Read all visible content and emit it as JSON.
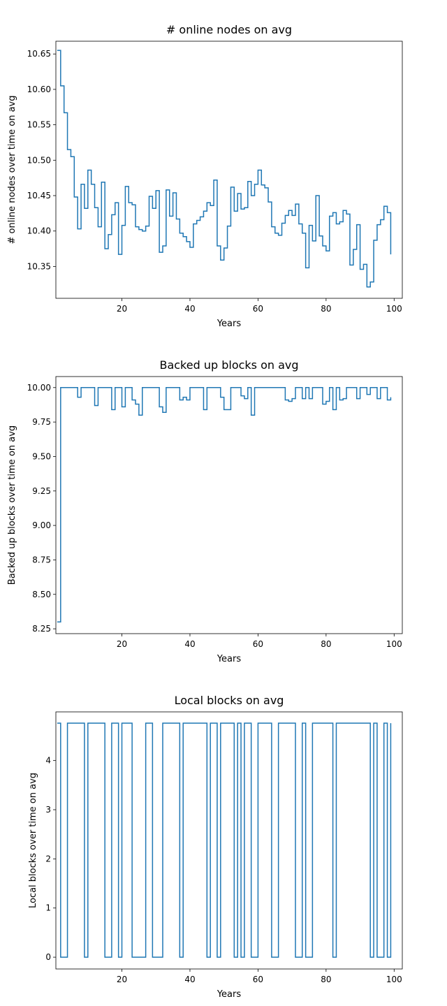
{
  "colors": {
    "line": "#1f77b4",
    "axes": "#000000",
    "background": "#ffffff"
  },
  "chart_data": [
    {
      "type": "line",
      "drawstyle": "steps",
      "title": "# online nodes on avg",
      "xlabel": "Years",
      "ylabel": "# online nodes over time on avg",
      "xlim": [
        0.6,
        102.4
      ],
      "ylim": [
        10.305,
        10.668
      ],
      "xticks": [
        20,
        40,
        60,
        80,
        100
      ],
      "yticks": [
        10.35,
        10.4,
        10.45,
        10.5,
        10.55,
        10.6,
        10.65
      ],
      "ytick_labels": [
        "10.35",
        "10.40",
        "10.45",
        "10.50",
        "10.55",
        "10.60",
        "10.65"
      ],
      "grid": false,
      "series": [
        {
          "x": [
            1,
            2,
            3,
            4,
            5,
            6,
            7,
            8,
            9,
            10,
            11,
            12,
            13,
            14,
            15,
            16,
            17,
            18,
            19,
            20,
            21,
            22,
            23,
            24,
            25,
            26,
            27,
            28,
            29,
            30,
            31,
            32,
            33,
            34,
            35,
            36,
            37,
            38,
            39,
            40,
            41,
            42,
            43,
            44,
            45,
            46,
            47,
            48,
            49,
            50,
            51,
            52,
            53,
            54,
            55,
            56,
            57,
            58,
            59,
            60,
            61,
            62,
            63,
            64,
            65,
            66,
            67,
            68,
            69,
            70,
            71,
            72,
            73,
            74,
            75,
            76,
            77,
            78,
            79,
            80,
            81,
            82,
            83,
            84,
            85,
            86,
            87,
            88,
            89,
            90,
            91,
            92,
            93,
            94,
            95,
            96,
            97,
            98,
            99
          ],
          "values": [
            10.655,
            10.605,
            10.567,
            10.515,
            10.505,
            10.448,
            10.403,
            10.466,
            10.432,
            10.486,
            10.466,
            10.433,
            10.406,
            10.469,
            10.375,
            10.395,
            10.423,
            10.44,
            10.367,
            10.408,
            10.463,
            10.44,
            10.437,
            10.406,
            10.402,
            10.4,
            10.407,
            10.449,
            10.432,
            10.457,
            10.37,
            10.379,
            10.458,
            10.421,
            10.454,
            10.417,
            10.397,
            10.392,
            10.385,
            10.377,
            10.41,
            10.415,
            10.42,
            10.428,
            10.44,
            10.436,
            10.472,
            10.379,
            10.359,
            10.376,
            10.407,
            10.462,
            10.428,
            10.453,
            10.431,
            10.433,
            10.47,
            10.45,
            10.466,
            10.486,
            10.465,
            10.461,
            10.441,
            10.406,
            10.397,
            10.394,
            10.411,
            10.422,
            10.429,
            10.422,
            10.438,
            10.41,
            10.397,
            10.348,
            10.408,
            10.386,
            10.45,
            10.393,
            10.379,
            10.372,
            10.421,
            10.426,
            10.41,
            10.413,
            10.429,
            10.424,
            10.352,
            10.374,
            10.409,
            10.346,
            10.353,
            10.321,
            10.328,
            10.387,
            10.409,
            10.416,
            10.435,
            10.426,
            10.367
          ]
        }
      ]
    },
    {
      "type": "line",
      "drawstyle": "steps",
      "title": "Backed up blocks on avg",
      "xlabel": "Years",
      "ylabel": "Backed up blocks over time on avg",
      "xlim": [
        0.6,
        102.4
      ],
      "ylim": [
        8.215,
        10.08
      ],
      "xticks": [
        20,
        40,
        60,
        80,
        100
      ],
      "yticks": [
        8.25,
        8.5,
        8.75,
        9.0,
        9.25,
        9.5,
        9.75,
        10.0
      ],
      "ytick_labels": [
        "8.25",
        "8.50",
        "8.75",
        "9.00",
        "9.25",
        "9.50",
        "9.75",
        "10.00"
      ],
      "grid": false,
      "series": [
        {
          "x": [
            1,
            2,
            3,
            4,
            5,
            6,
            7,
            8,
            9,
            10,
            11,
            12,
            13,
            14,
            15,
            16,
            17,
            18,
            19,
            20,
            21,
            22,
            23,
            24,
            25,
            26,
            27,
            28,
            29,
            30,
            31,
            32,
            33,
            34,
            35,
            36,
            37,
            38,
            39,
            40,
            41,
            42,
            43,
            44,
            45,
            46,
            47,
            48,
            49,
            50,
            51,
            52,
            53,
            54,
            55,
            56,
            57,
            58,
            59,
            60,
            61,
            62,
            63,
            64,
            65,
            66,
            67,
            68,
            69,
            70,
            71,
            72,
            73,
            74,
            75,
            76,
            77,
            78,
            79,
            80,
            81,
            82,
            83,
            84,
            85,
            86,
            87,
            88,
            89,
            90,
            91,
            92,
            93,
            94,
            95,
            96,
            97,
            98,
            99
          ],
          "values": [
            8.3,
            10.0,
            10.0,
            10.0,
            10.0,
            10.0,
            9.93,
            10.0,
            10.0,
            10.0,
            10.0,
            9.87,
            10.0,
            10.0,
            10.0,
            10.0,
            9.84,
            10.0,
            10.0,
            9.86,
            10.0,
            10.0,
            9.91,
            9.88,
            9.8,
            10.0,
            10.0,
            10.0,
            10.0,
            10.0,
            9.86,
            9.82,
            10.0,
            10.0,
            10.0,
            10.0,
            9.91,
            9.93,
            9.91,
            10.0,
            10.0,
            10.0,
            10.0,
            9.84,
            10.0,
            10.0,
            10.0,
            10.0,
            9.93,
            9.84,
            9.84,
            10.0,
            10.0,
            10.0,
            9.94,
            9.92,
            10.0,
            9.8,
            10.0,
            10.0,
            10.0,
            10.0,
            10.0,
            10.0,
            10.0,
            10.0,
            10.0,
            9.91,
            9.9,
            9.92,
            10.0,
            10.0,
            9.92,
            10.0,
            9.92,
            10.0,
            10.0,
            10.0,
            9.88,
            9.9,
            10.0,
            9.84,
            10.0,
            9.91,
            9.92,
            10.0,
            10.0,
            10.0,
            9.92,
            10.0,
            10.0,
            9.95,
            10.0,
            10.0,
            9.92,
            10.0,
            10.0,
            9.91,
            9.93
          ]
        }
      ]
    },
    {
      "type": "line",
      "drawstyle": "steps",
      "title": "Local blocks on avg",
      "xlabel": "Years",
      "ylabel": "Local blocks over time on avg",
      "xlim": [
        0.6,
        102.4
      ],
      "ylim": [
        -0.24,
        4.99
      ],
      "xticks": [
        20,
        40,
        60,
        80,
        100
      ],
      "yticks": [
        0,
        1,
        2,
        3,
        4
      ],
      "ytick_labels": [
        "0",
        "1",
        "2",
        "3",
        "4"
      ],
      "grid": false,
      "series": [
        {
          "x": [
            1,
            2,
            3,
            4,
            5,
            6,
            7,
            8,
            9,
            10,
            11,
            12,
            13,
            14,
            15,
            16,
            17,
            18,
            19,
            20,
            21,
            22,
            23,
            24,
            25,
            26,
            27,
            28,
            29,
            30,
            31,
            32,
            33,
            34,
            35,
            36,
            37,
            38,
            39,
            40,
            41,
            42,
            43,
            44,
            45,
            46,
            47,
            48,
            49,
            50,
            51,
            52,
            53,
            54,
            55,
            56,
            57,
            58,
            59,
            60,
            61,
            62,
            63,
            64,
            65,
            66,
            67,
            68,
            69,
            70,
            71,
            72,
            73,
            74,
            75,
            76,
            77,
            78,
            79,
            80,
            81,
            82,
            83,
            84,
            85,
            86,
            87,
            88,
            89,
            90,
            91,
            92,
            93,
            94,
            95,
            96,
            97,
            98,
            99
          ],
          "values": [
            4.76,
            0,
            0,
            4.76,
            4.76,
            4.76,
            4.76,
            4.76,
            0,
            4.76,
            4.76,
            4.76,
            4.76,
            4.76,
            0,
            0,
            4.76,
            4.76,
            0,
            4.76,
            4.76,
            4.76,
            0,
            0,
            0,
            0,
            4.76,
            4.76,
            0,
            0,
            0,
            4.76,
            4.76,
            4.76,
            4.76,
            4.76,
            0,
            4.76,
            4.76,
            4.76,
            4.76,
            4.76,
            4.76,
            4.76,
            0,
            4.76,
            4.76,
            0,
            4.76,
            4.76,
            4.76,
            4.76,
            0,
            4.76,
            0,
            4.76,
            4.76,
            0,
            0,
            4.76,
            4.76,
            4.76,
            4.76,
            0,
            0,
            4.76,
            4.76,
            4.76,
            4.76,
            4.76,
            0,
            0,
            4.76,
            0,
            0,
            4.76,
            4.76,
            4.76,
            4.76,
            4.76,
            4.76,
            0,
            4.76,
            4.76,
            4.76,
            4.76,
            4.76,
            4.76,
            4.76,
            4.76,
            4.76,
            4.76,
            0,
            4.76,
            0,
            0,
            4.76,
            0,
            4.76
          ]
        }
      ]
    }
  ]
}
